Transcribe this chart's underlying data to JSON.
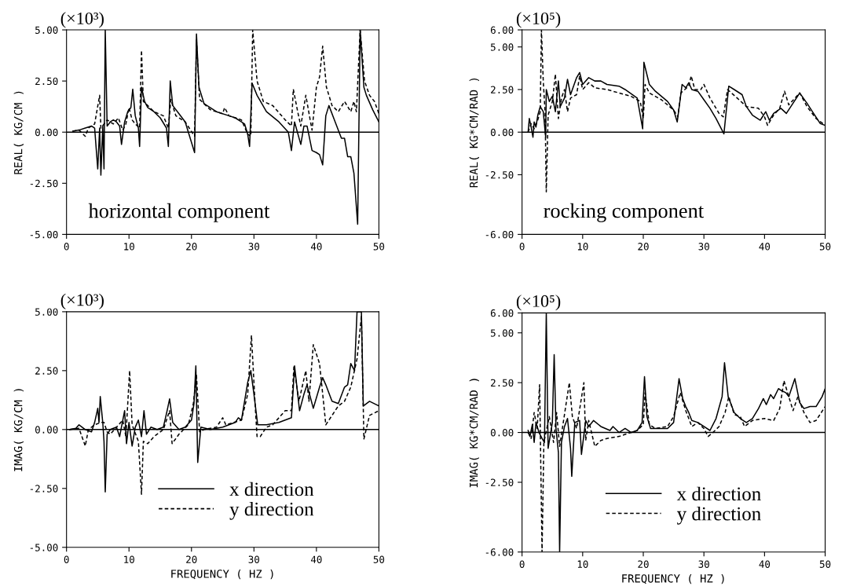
{
  "chart_data": [
    {
      "type": "line",
      "ylabel": "REAL( KG/CM )",
      "annotations": [
        "(×10³)",
        "horizontal component"
      ],
      "xlim": [
        0,
        50
      ],
      "xticks": [
        0,
        10,
        20,
        30,
        40,
        50
      ],
      "ylim": [
        -5,
        5
      ],
      "yticks": [
        {
          "value": -5,
          "label": "-5.00"
        },
        {
          "value": -2.5,
          "label": "-2.50"
        },
        {
          "value": 0,
          "label": "0.00"
        },
        {
          "value": 2.5,
          "label": "2.50"
        },
        {
          "value": 5,
          "label": "5.00"
        }
      ],
      "ref_lines": [
        {
          "axis": "y",
          "value": 0,
          "color": "#000000",
          "line_style": "solid"
        }
      ],
      "series": [
        {
          "color": "#000000",
          "line_style": "solid",
          "x": [
            1,
            2,
            3,
            4,
            4.5,
            5,
            5.3,
            5.5,
            5.8,
            6.0,
            6.2,
            6.5,
            7,
            7.5,
            8,
            8.5,
            8.8,
            9.3,
            9.8,
            10.3,
            10.6,
            11,
            11.5,
            11.7,
            12,
            12.5,
            13,
            14,
            15,
            16,
            16.3,
            16.6,
            17,
            18,
            19,
            20,
            20.5,
            20.8,
            21.2,
            22,
            24,
            26,
            27,
            28,
            28.5,
            29,
            29.3,
            29.7,
            30.5,
            32,
            34,
            35.5,
            36,
            36.5,
            37.5,
            38,
            38.5,
            39.3,
            40,
            40.5,
            41,
            41.5,
            42,
            43,
            44,
            44.5,
            45,
            45.5,
            46,
            46.6,
            47,
            47.6,
            48,
            49,
            50
          ],
          "values": [
            0.05,
            0.1,
            0.2,
            0.3,
            0.2,
            -1.8,
            0.2,
            -2.1,
            0.3,
            -1.8,
            5.0,
            0.3,
            0.5,
            0.6,
            0.5,
            0.3,
            -0.6,
            0.5,
            1.0,
            1.2,
            2.1,
            0.8,
            0.2,
            -0.7,
            2.2,
            1.5,
            1.2,
            1.0,
            0.7,
            0.2,
            -0.7,
            2.5,
            1.3,
            0.9,
            0.5,
            -0.5,
            -1.0,
            4.8,
            2.2,
            1.4,
            1.0,
            0.8,
            0.7,
            0.5,
            0.4,
            -0.1,
            -0.7,
            2.4,
            1.8,
            1.0,
            0.5,
            0.0,
            -0.9,
            0.5,
            -0.6,
            0.3,
            0.3,
            -0.9,
            -1.0,
            -1.1,
            -1.6,
            0.8,
            1.3,
            0.5,
            -0.3,
            -0.3,
            -1.2,
            -1.2,
            -2.0,
            -4.5,
            5.0,
            2.2,
            1.8,
            1.1,
            0.5
          ]
        },
        {
          "color": "#000000",
          "line_style": "dashed",
          "x": [
            1,
            2,
            3,
            3.5,
            4.5,
            5.3,
            5.5,
            6.5,
            7.5,
            8.3,
            9,
            9.5,
            10,
            10.5,
            11,
            11.7,
            12,
            12.3,
            13,
            14,
            15.5,
            16.3,
            16.7,
            17.5,
            19,
            20.5,
            20.8,
            21.3,
            23,
            25,
            25.3,
            26,
            28,
            29,
            29.5,
            29.8,
            30.5,
            31.5,
            33,
            35,
            36,
            36.3,
            37,
            37.5,
            38.3,
            39,
            39.3,
            40,
            40.5,
            41,
            41.6,
            42.5,
            43.5,
            44.5,
            45.5,
            46,
            46.4,
            47,
            47.7,
            48.5,
            49.3,
            50
          ],
          "values": [
            0.05,
            0.1,
            -0.2,
            0.2,
            0.4,
            1.8,
            0.2,
            0.6,
            0.4,
            0.7,
            0.1,
            0.4,
            1.2,
            0.6,
            0.4,
            0.2,
            4.0,
            1.5,
            1.3,
            1.0,
            0.8,
            0.2,
            1.6,
            0.8,
            0.5,
            -0.2,
            4.5,
            1.6,
            1.1,
            0.9,
            1.2,
            0.8,
            0.6,
            -0.1,
            -0.2,
            5.0,
            2.5,
            1.5,
            1.3,
            0.6,
            0.3,
            2.1,
            1.0,
            0.3,
            1.8,
            0.6,
            0.1,
            2.2,
            2.7,
            4.2,
            2.2,
            1.3,
            1.0,
            1.5,
            1.0,
            1.5,
            1.0,
            5.0,
            2.5,
            1.8,
            1.5,
            0.9
          ]
        }
      ]
    },
    {
      "type": "line",
      "ylabel": "REAL( KG*CM/RAD )",
      "annotations": [
        "(×10⁵)",
        "rocking component"
      ],
      "xlim": [
        0,
        50
      ],
      "xticks": [
        0,
        10,
        20,
        30,
        40,
        50
      ],
      "ylim": [
        -6,
        6
      ],
      "yticks": [
        {
          "value": -6,
          "label": "-6.00"
        },
        {
          "value": -2.5,
          "label": "-2.50"
        },
        {
          "value": 0,
          "label": "0.00"
        },
        {
          "value": 2.5,
          "label": "2.50"
        },
        {
          "value": 5,
          "label": "5.00"
        },
        {
          "value": 6,
          "label": "6.00"
        }
      ],
      "ref_lines": [
        {
          "axis": "y",
          "value": 0,
          "color": "#000000",
          "line_style": "solid"
        }
      ],
      "series": [
        {
          "color": "#000000",
          "line_style": "solid",
          "x": [
            1,
            1.2,
            1.5,
            1.8,
            2.0,
            2.3,
            2.6,
            3,
            3.5,
            3.9,
            4,
            4.5,
            5,
            5.5,
            6,
            6.3,
            7,
            7.5,
            8,
            9,
            9.5,
            10,
            11,
            12,
            13,
            14,
            16,
            17,
            19,
            19.9,
            20.1,
            21,
            22,
            24,
            25,
            25.6,
            26.4,
            27,
            27.5,
            28,
            29,
            30,
            31,
            32,
            33.3,
            34.1,
            35,
            36.3,
            37,
            38,
            39.3,
            40.2,
            40.8,
            41.5,
            42.7,
            43.6,
            45.8,
            47,
            47.9,
            49.2,
            50
          ],
          "values": [
            0.0,
            0.8,
            0.3,
            -0.3,
            0.6,
            0.3,
            1.0,
            1.5,
            1.2,
            -0.3,
            2.5,
            1.8,
            2.1,
            1.2,
            3.0,
            1.5,
            2.0,
            3.1,
            2.2,
            3.2,
            3.5,
            2.8,
            3.2,
            3.0,
            3.0,
            2.8,
            2.7,
            2.5,
            2.0,
            0.2,
            4.1,
            2.8,
            2.4,
            1.8,
            1.3,
            0.6,
            2.8,
            2.6,
            2.9,
            2.5,
            2.4,
            1.9,
            1.4,
            0.8,
            -0.1,
            2.7,
            2.5,
            2.2,
            1.5,
            1.0,
            0.7,
            1.2,
            0.7,
            1.1,
            1.4,
            1.1,
            2.3,
            1.7,
            1.2,
            0.5,
            0.4
          ]
        },
        {
          "color": "#000000",
          "line_style": "dashed",
          "x": [
            1,
            1.5,
            2,
            2.5,
            3,
            3.2,
            3.5,
            3.8,
            4.0,
            4.3,
            5,
            5.5,
            6,
            6.5,
            7,
            7.5,
            8,
            9,
            9.5,
            10,
            11,
            12,
            14,
            16,
            18,
            19.5,
            20,
            20.3,
            21,
            23,
            25,
            25.7,
            26.2,
            27.5,
            27.9,
            28.5,
            29.5,
            30,
            31,
            32.5,
            33.2,
            33.9,
            35.5,
            37,
            39,
            40,
            40.5,
            41.5,
            42.5,
            43.3,
            44,
            45.8,
            47,
            48.5,
            50
          ],
          "values": [
            0.0,
            0.5,
            0.2,
            0.6,
            1.2,
            6.0,
            3.0,
            1.2,
            -3.5,
            1.0,
            1.8,
            3.4,
            0.8,
            2.0,
            2.5,
            1.2,
            2.0,
            2.2,
            3.3,
            2.5,
            2.9,
            2.6,
            2.5,
            2.3,
            2.1,
            1.8,
            0.8,
            2.8,
            2.3,
            1.9,
            1.3,
            0.9,
            2.3,
            2.7,
            3.3,
            2.5,
            2.5,
            2.8,
            2.0,
            1.1,
            0.9,
            2.5,
            2.0,
            1.5,
            1.4,
            0.9,
            0.4,
            1.0,
            1.4,
            2.4,
            1.6,
            2.3,
            1.5,
            0.8,
            0.4
          ]
        }
      ]
    },
    {
      "type": "line",
      "xlabel": "FREQUENCY ( HZ )",
      "ylabel": "IMAG( KG/CM )",
      "annotations": [
        "(×10³)"
      ],
      "legend": "bottom right",
      "xlim": [
        0,
        50
      ],
      "xticks": [
        0,
        10,
        20,
        30,
        40,
        50
      ],
      "ylim": [
        -5,
        5
      ],
      "yticks": [
        {
          "value": -5,
          "label": "-5.00"
        },
        {
          "value": -2.5,
          "label": "-2.50"
        },
        {
          "value": 0,
          "label": "0.00"
        },
        {
          "value": 2.5,
          "label": "2.50"
        },
        {
          "value": 5,
          "label": "5.00"
        }
      ],
      "ref_lines": [
        {
          "axis": "y",
          "value": 0,
          "color": "#000000",
          "line_style": "solid"
        }
      ],
      "series": [
        {
          "name": "x direction",
          "color": "#000000",
          "line_style": "solid",
          "x": [
            0.5,
            1.5,
            2,
            3,
            4,
            4.5,
            5,
            5.2,
            5.4,
            5.8,
            6.0,
            6.2,
            6.5,
            7,
            8,
            8.5,
            9.3,
            9.6,
            10,
            10.5,
            11,
            11.5,
            12,
            12.4,
            12.8,
            13.5,
            14.5,
            15.5,
            16.1,
            16.5,
            17,
            18,
            19,
            20,
            20.4,
            20.7,
            21.0,
            21.5,
            23,
            25,
            27,
            27.5,
            28,
            29,
            29.5,
            30,
            30.6,
            32,
            34,
            35,
            36,
            36.3,
            36.5,
            37.3,
            38,
            38.5,
            39.5,
            40.5,
            41,
            41.5,
            42.5,
            43.5,
            44.5,
            45,
            45.5,
            46.1,
            46.5,
            47.2,
            47.5,
            48.5,
            50
          ],
          "values": [
            0,
            0.05,
            0.2,
            0.0,
            -0.1,
            0.3,
            0.9,
            0.3,
            1.4,
            0.3,
            -0.5,
            -2.65,
            -0.2,
            0.0,
            0.1,
            -0.3,
            0.8,
            -0.6,
            0.3,
            -0.7,
            0.1,
            0.4,
            -0.3,
            0.8,
            -0.2,
            0.1,
            0.0,
            0.1,
            0.8,
            1.3,
            0.3,
            0.0,
            0.1,
            0.4,
            1.1,
            2.7,
            -1.4,
            0.1,
            0.0,
            0.1,
            0.3,
            0.5,
            0.4,
            2.0,
            2.5,
            1.5,
            0.2,
            0.2,
            0.3,
            0.4,
            0.5,
            1.8,
            2.7,
            0.8,
            1.5,
            1.9,
            0.9,
            1.8,
            2.2,
            1.9,
            1.2,
            1.1,
            1.8,
            1.9,
            2.8,
            2.5,
            5.0,
            5.0,
            1.0,
            1.2,
            1.0
          ]
        },
        {
          "name": "y direction",
          "color": "#000000",
          "line_style": "dashed",
          "x": [
            0.5,
            2,
            3,
            3.5,
            4.5,
            5.5,
            6,
            6.5,
            7,
            8,
            9,
            9.5,
            10.1,
            10.5,
            11.5,
            12,
            12.3,
            13,
            14,
            15.5,
            16.5,
            16.9,
            18,
            19.5,
            20.3,
            20.8,
            21.3,
            22,
            24,
            25,
            25.5,
            28,
            29,
            29.6,
            30.2,
            30.5,
            31,
            32,
            33,
            35,
            36,
            36.4,
            37.2,
            38.3,
            38.8,
            39.5,
            40.5,
            41.2,
            41.5,
            42.5,
            43.5,
            44.5,
            45.5,
            46.5,
            47.2,
            47.6,
            48.5,
            50
          ],
          "values": [
            0,
            0.05,
            -0.7,
            0.0,
            0.2,
            0.3,
            0.3,
            -0.1,
            -0.2,
            0.1,
            0.4,
            -0.3,
            2.5,
            0.2,
            -0.5,
            -2.75,
            -0.5,
            -0.6,
            -0.3,
            0.0,
            0.8,
            -0.6,
            -0.2,
            0.2,
            1.1,
            2.3,
            -0.1,
            0.0,
            0.1,
            0.5,
            0.2,
            0.4,
            1.5,
            4.0,
            1.0,
            -0.3,
            -0.3,
            0.1,
            0.2,
            0.8,
            0.8,
            2.7,
            1.2,
            2.5,
            1.2,
            3.6,
            2.8,
            1.0,
            0.2,
            0.6,
            1.0,
            1.2,
            1.8,
            3.0,
            4.8,
            -0.4,
            0.6,
            0.8
          ]
        }
      ]
    },
    {
      "type": "line",
      "xlabel": "FREQUENCY ( HZ )",
      "ylabel": "IMAG( KG*CM/RAD )",
      "annotations": [
        "(×10⁵)"
      ],
      "legend": "bottom right",
      "xlim": [
        0,
        50
      ],
      "xticks": [
        0,
        10,
        20,
        30,
        40,
        50
      ],
      "ylim": [
        -6,
        6
      ],
      "yticks": [
        {
          "value": -6,
          "label": "-6.00"
        },
        {
          "value": -2.5,
          "label": "-2.50"
        },
        {
          "value": 0,
          "label": "0.00"
        },
        {
          "value": 2.5,
          "label": "2.50"
        },
        {
          "value": 5,
          "label": "5.00"
        },
        {
          "value": 6,
          "label": "6.00"
        }
      ],
      "ref_lines": [
        {
          "axis": "y",
          "value": 0,
          "color": "#000000",
          "line_style": "solid"
        }
      ],
      "series": [
        {
          "name": "x direction",
          "color": "#000000",
          "line_style": "solid",
          "x": [
            1,
            1.3,
            1.7,
            2.0,
            2.3,
            2.8,
            3.3,
            3.7,
            4.0,
            4.3,
            5.0,
            5.3,
            5.6,
            6.0,
            6.2,
            6.5,
            7,
            7.5,
            8.0,
            8.2,
            8.7,
            9.5,
            9.8,
            10.5,
            11,
            11.8,
            13,
            14.5,
            15,
            16,
            17,
            18,
            19,
            19.8,
            20.2,
            20.6,
            21.2,
            22,
            24,
            25,
            25.9,
            26.5,
            27,
            27.5,
            28,
            29,
            30,
            31,
            32,
            33,
            33.4,
            34,
            35,
            36,
            37,
            38,
            39,
            39.8,
            40.3,
            41,
            41.5,
            42.3,
            42.8,
            43.5,
            44,
            45,
            45.8,
            46.5,
            47.5,
            48.5,
            49.5,
            50
          ],
          "values": [
            0.1,
            -0.2,
            0.4,
            -0.5,
            0.5,
            0.0,
            -0.3,
            -0.5,
            6.0,
            -0.8,
            0.5,
            3.9,
            0.2,
            -1.0,
            -6.0,
            -0.5,
            0.3,
            0.7,
            -0.8,
            -2.2,
            0.5,
            0.6,
            -1.1,
            0.6,
            0.3,
            0.6,
            0.3,
            0.1,
            0.3,
            0.0,
            0.2,
            0.0,
            0.1,
            0.5,
            2.8,
            0.8,
            0.2,
            0.2,
            0.2,
            0.5,
            2.7,
            1.7,
            1.3,
            1.0,
            0.6,
            0.5,
            0.3,
            0.1,
            0.7,
            1.8,
            3.5,
            1.8,
            1.0,
            0.7,
            0.5,
            0.7,
            1.2,
            1.7,
            1.4,
            1.9,
            1.7,
            2.2,
            2.1,
            2.0,
            1.8,
            2.7,
            1.5,
            1.2,
            1.3,
            1.3,
            1.8,
            2.2
          ]
        },
        {
          "name": "y direction",
          "color": "#000000",
          "line_style": "dashed",
          "x": [
            1,
            1.5,
            2.0,
            2.5,
            2.9,
            3.3,
            3.6,
            4.5,
            5.2,
            5.7,
            6.2,
            6.8,
            7.8,
            8.3,
            9.0,
            10.2,
            10.5,
            11,
            12,
            13,
            14,
            16,
            17,
            18,
            19,
            20,
            20.3,
            21,
            22,
            24,
            25,
            26.1,
            27,
            28,
            29,
            30,
            30.7,
            31.5,
            32.5,
            33.5,
            34.1,
            35,
            36,
            36.7,
            38,
            40,
            41.5,
            42.5,
            43.2,
            44,
            44.7,
            45.5,
            46.5,
            47.5,
            48.5,
            50
          ],
          "values": [
            0.0,
            -0.3,
            1.0,
            0.2,
            2.4,
            -6.0,
            -0.5,
            0.8,
            -0.5,
            1.0,
            -0.7,
            0.5,
            2.5,
            0.8,
            0.2,
            2.5,
            -0.4,
            0.6,
            -0.7,
            -0.4,
            -0.3,
            -0.2,
            -0.1,
            0.0,
            0.1,
            0.4,
            2.0,
            0.4,
            0.2,
            0.3,
            0.8,
            2.0,
            1.1,
            0.3,
            0.5,
            0.2,
            -0.2,
            0.0,
            0.3,
            1.0,
            1.8,
            0.9,
            0.8,
            0.3,
            0.6,
            0.7,
            0.6,
            1.2,
            2.6,
            1.8,
            1.1,
            1.8,
            1.0,
            0.5,
            0.6,
            1.3
          ]
        }
      ]
    }
  ]
}
